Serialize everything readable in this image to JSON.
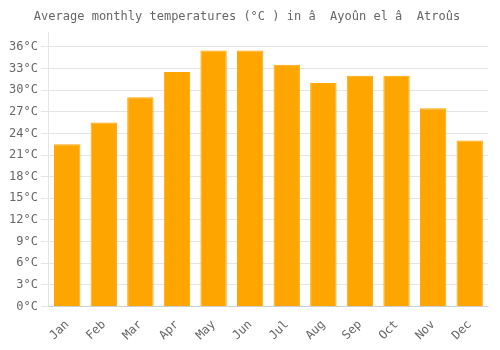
{
  "chart_data": {
    "type": "bar",
    "title": "Average monthly temperatures (°C ) in â  Ayoûn el â  Atroûs",
    "categories": [
      "Jan",
      "Feb",
      "Mar",
      "Apr",
      "May",
      "Jun",
      "Jul",
      "Aug",
      "Sep",
      "Oct",
      "Nov",
      "Dec"
    ],
    "values": [
      22.5,
      25.5,
      29.0,
      32.5,
      35.5,
      35.5,
      33.5,
      31.0,
      32.0,
      32.0,
      27.5,
      23.0
    ],
    "color": "#FFA500",
    "ylim": [
      0,
      38
    ],
    "yticks": [
      {
        "value": 0,
        "label": "0°C"
      },
      {
        "value": 3,
        "label": "3°C"
      },
      {
        "value": 6,
        "label": "6°C"
      },
      {
        "value": 9,
        "label": "9°C"
      },
      {
        "value": 12,
        "label": "12°C"
      },
      {
        "value": 15,
        "label": "15°C"
      },
      {
        "value": 18,
        "label": "18°C"
      },
      {
        "value": 21,
        "label": "21°C"
      },
      {
        "value": 24,
        "label": "24°C"
      },
      {
        "value": 27,
        "label": "27°C"
      },
      {
        "value": 30,
        "label": "30°C"
      },
      {
        "value": 33,
        "label": "33°C"
      },
      {
        "value": 36,
        "label": "36°C"
      }
    ],
    "grid": true
  }
}
